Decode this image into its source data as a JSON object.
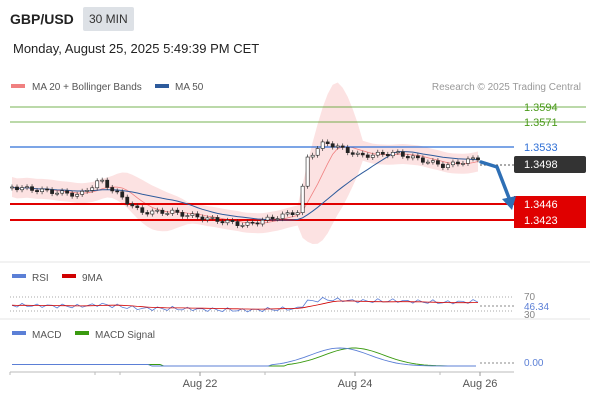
{
  "header": {
    "pair": "GBP/USD",
    "timeframe": "30 MIN",
    "datetime": "Monday, August 25, 2025 5:49:39 PM CET"
  },
  "chart_data": {
    "type": "candlestick",
    "legend": {
      "bollinger_label": "MA 20 + Bollinger Bands",
      "ma50_label": "MA 50",
      "bollinger_color": "#f08080",
      "ma50_color": "#2e5b9c"
    },
    "copyright": "Research © 2025 Trading Central",
    "current_price": "1.3498",
    "levels": [
      {
        "value": "1.3594",
        "kind": "target",
        "color": "#4a9a1a"
      },
      {
        "value": "1.3571",
        "kind": "target",
        "color": "#4a9a1a"
      },
      {
        "value": "1.3533",
        "kind": "pivot",
        "color": "#2e6fd6"
      },
      {
        "value": "1.3446",
        "kind": "support",
        "color": "#e00000"
      },
      {
        "value": "1.3423",
        "kind": "support",
        "color": "#e00000"
      }
    ],
    "x_ticks": [
      "Aug 22",
      "Aug 24",
      "Aug 26"
    ],
    "rsi": {
      "label": "RSI",
      "ma_label": "9MA",
      "value": "46.34",
      "levels": [
        "70",
        "30"
      ],
      "rsi_color": "#5b7fd6",
      "ma_color": "#d00000"
    },
    "macd": {
      "label": "MACD",
      "signal_label": "MACD Signal",
      "value": "0.00",
      "macd_color": "#5b7fd6",
      "signal_color": "#3a9a10"
    }
  }
}
